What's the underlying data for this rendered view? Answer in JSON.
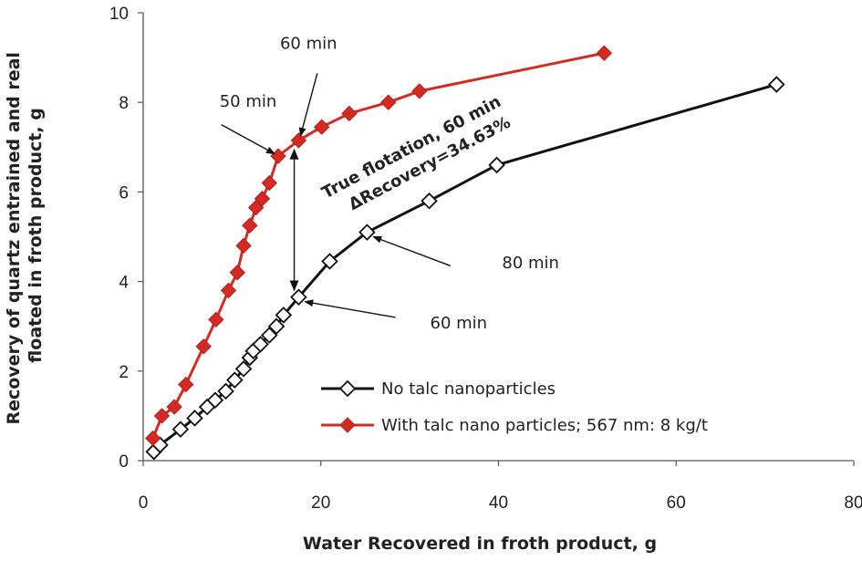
{
  "chart_data": {
    "type": "line",
    "title": "",
    "xlabel": "Water Recovered in froth product,  g",
    "ylabel_lines": [
      "Recovery of quartz entrained and real",
      "floated in froth product, g"
    ],
    "xlim": [
      0,
      80
    ],
    "ylim": [
      0,
      10
    ],
    "x_ticks": [
      0,
      20,
      40,
      60,
      80
    ],
    "x_tick_labels": [
      "0",
      "20",
      "40",
      "60",
      "80"
    ],
    "y_ticks": [
      0,
      2,
      4,
      6,
      8,
      10
    ],
    "y_tick_labels": [
      "0",
      "2",
      "4",
      "6",
      "8",
      "10"
    ],
    "grid": false,
    "legend_position": "lower-right",
    "series": [
      {
        "name": "No talc nanoparticles",
        "color": "#111111",
        "marker": "open-diamond",
        "x": [
          1.2,
          1.9,
          4.2,
          5.8,
          7.2,
          8.1,
          9.3,
          10.3,
          11.3,
          12.0,
          12.4,
          13.2,
          14.2,
          15.0,
          15.8,
          17.5,
          21.0,
          25.2,
          32.2,
          39.8,
          71.3
        ],
        "y": [
          0.2,
          0.35,
          0.7,
          0.95,
          1.2,
          1.35,
          1.55,
          1.8,
          2.05,
          2.3,
          2.45,
          2.6,
          2.8,
          3.0,
          3.25,
          3.65,
          4.45,
          5.1,
          5.8,
          6.6,
          8.4
        ]
      },
      {
        "name": "With talc nano particles; 567 nm: 8 kg/t",
        "color": "#d42a22",
        "marker": "filled-diamond",
        "x": [
          1.1,
          2.1,
          3.5,
          4.8,
          6.8,
          8.2,
          9.6,
          10.6,
          11.3,
          12.0,
          12.7,
          13.4,
          14.2,
          15.2,
          17.5,
          20.1,
          23.2,
          27.6,
          31.1,
          51.9
        ],
        "y": [
          0.5,
          1.0,
          1.2,
          1.7,
          2.55,
          3.15,
          3.8,
          4.2,
          4.8,
          5.25,
          5.65,
          5.85,
          6.2,
          6.8,
          7.15,
          7.45,
          7.75,
          8.0,
          8.25,
          9.1
        ]
      }
    ],
    "annotations": [
      {
        "id": "lbl-60min-top",
        "text": "60 min",
        "text_at": [
          15.4,
          9.2
        ],
        "arrow_from": [
          19.6,
          8.65
        ],
        "arrow_to": [
          17.7,
          7.25
        ]
      },
      {
        "id": "lbl-50min",
        "text": "50 min",
        "text_at": [
          8.6,
          7.9
        ],
        "arrow_from": [
          8.8,
          7.5
        ],
        "arrow_to": [
          14.8,
          6.85
        ]
      },
      {
        "id": "lbl-80min",
        "text": "80 min",
        "text_at": [
          40.4,
          4.3
        ],
        "arrow_from": [
          34.6,
          4.35
        ],
        "arrow_to": [
          25.9,
          5.0
        ]
      },
      {
        "id": "lbl-60min-bottom",
        "text": "60 min",
        "text_at": [
          32.3,
          2.95
        ],
        "arrow_from": [
          28.4,
          3.2
        ],
        "arrow_to": [
          18.2,
          3.55
        ]
      }
    ],
    "delta_arrow": {
      "x": 17.0,
      "y_top": 6.95,
      "y_bottom": 3.8
    },
    "true_flotation_label": [
      "True flotation, 60 min",
      "ΔRecovery=34.63%"
    ]
  }
}
